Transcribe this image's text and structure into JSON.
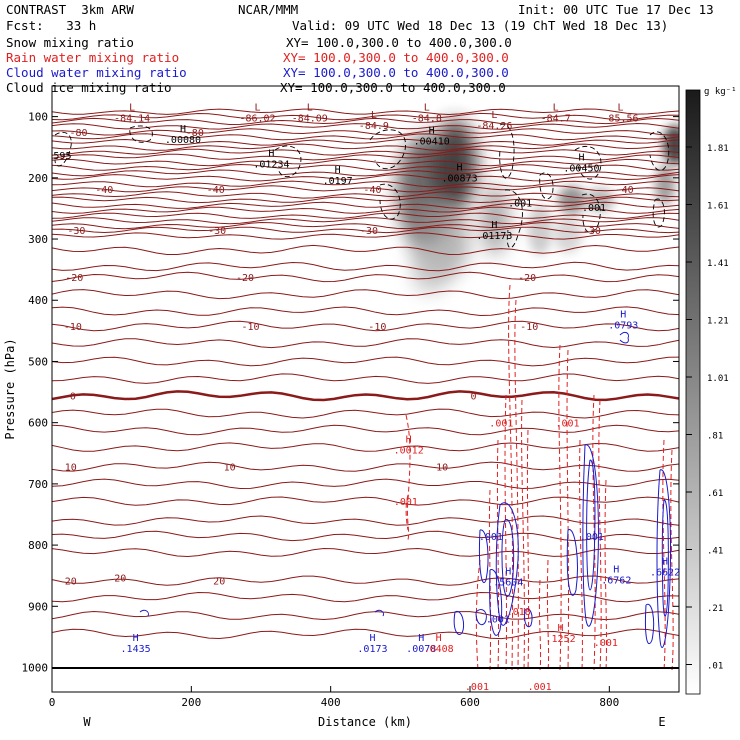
{
  "header": {
    "model": "CONTRAST  3km ARW",
    "org": "NCAR/MMM",
    "init": "Init: 00 UTC Tue 17 Dec 13",
    "fcst": "Fcst:   33 h",
    "valid": "Valid: 09 UTC Wed 18 Dec 13 (19 ChT Wed 18 Dec 13)"
  },
  "colors": {
    "snow": "#000000",
    "rain": "#e02020",
    "cloud_water": "#1a1acc",
    "cloud_ice": "#000000",
    "temp": "#8b1a1a"
  },
  "chart_data": {
    "type": "heatmap",
    "xlabel": "Distance (km)",
    "ylabel": "Pressure (hPa)",
    "xlim": [
      0,
      900
    ],
    "ylim": [
      1040,
      50
    ],
    "x_ticks": [
      0,
      200,
      400,
      600,
      800
    ],
    "y_ticks": [
      100,
      200,
      300,
      400,
      500,
      600,
      700,
      800,
      900,
      1000
    ],
    "x_end_labels": {
      "left": "W",
      "right": "E"
    },
    "legend": [
      {
        "name": "Snow mixing ratio",
        "xy": "XY= 100.0,300.0 to 400.0,300.0",
        "color": "#000000"
      },
      {
        "name": "Rain water mixing ratio",
        "xy": "XY= 100.0,300.0 to 400.0,300.0",
        "color": "#e02020"
      },
      {
        "name": "Cloud water mixing ratio",
        "xy": "XY= 100.0,300.0 to 400.0,300.0",
        "color": "#1a1acc"
      },
      {
        "name": "Cloud ice mixing ratio",
        "xy": "XY= 100.0,300.0 to 400.0,300.0",
        "color": "#000000"
      }
    ],
    "colorbar": {
      "unit": "g kg⁻¹",
      "labels": [
        "1.81",
        "1.61",
        "1.41",
        "1.21",
        "1.01",
        ".81",
        ".61",
        ".41",
        ".21",
        ".01"
      ]
    },
    "temperature_labels": [
      {
        "x": 38,
        "p": 125,
        "text": "-80"
      },
      {
        "x": 205,
        "p": 125,
        "text": "-80"
      },
      {
        "x": 75,
        "p": 218,
        "text": "-40"
      },
      {
        "x": 235,
        "p": 218,
        "text": "-40"
      },
      {
        "x": 460,
        "p": 218,
        "text": "-40"
      },
      {
        "x": 822,
        "p": 218,
        "text": "-40"
      },
      {
        "x": 35,
        "p": 285,
        "text": "-30"
      },
      {
        "x": 237,
        "p": 285,
        "text": "-30"
      },
      {
        "x": 455,
        "p": 285,
        "text": "-30"
      },
      {
        "x": 775,
        "p": 285,
        "text": "-30"
      },
      {
        "x": 32,
        "p": 362,
        "text": "-20"
      },
      {
        "x": 277,
        "p": 362,
        "text": "-20"
      },
      {
        "x": 682,
        "p": 362,
        "text": "-20"
      },
      {
        "x": 30,
        "p": 442,
        "text": "-10"
      },
      {
        "x": 285,
        "p": 442,
        "text": "-10"
      },
      {
        "x": 467,
        "p": 442,
        "text": "-10"
      },
      {
        "x": 685,
        "p": 442,
        "text": "-10"
      },
      {
        "x": 30,
        "p": 556,
        "text": "0"
      },
      {
        "x": 605,
        "p": 556,
        "text": "0"
      },
      {
        "x": 27,
        "p": 672,
        "text": "10"
      },
      {
        "x": 255,
        "p": 672,
        "text": "10"
      },
      {
        "x": 560,
        "p": 672,
        "text": "10"
      },
      {
        "x": 27,
        "p": 858,
        "text": "20"
      },
      {
        "x": 98,
        "p": 853,
        "text": "20"
      },
      {
        "x": 240,
        "p": 858,
        "text": "20"
      }
    ],
    "extrema_labels": [
      {
        "x": 115,
        "p": 90,
        "text": "L",
        "val": "-84.14",
        "color": "#8b1a1a"
      },
      {
        "x": 295,
        "p": 90,
        "text": "L",
        "val": "-86.02",
        "color": "#8b1a1a"
      },
      {
        "x": 370,
        "p": 90,
        "text": "L",
        "val": "-84.09",
        "color": "#8b1a1a"
      },
      {
        "x": 462,
        "p": 102,
        "text": "L",
        "val": "-84.9",
        "color": "#8b1a1a"
      },
      {
        "x": 538,
        "p": 90,
        "text": "L",
        "val": "-84.8",
        "color": "#8b1a1a"
      },
      {
        "x": 635,
        "p": 102,
        "text": "L",
        "val": "-84.26",
        "color": "#8b1a1a"
      },
      {
        "x": 723,
        "p": 90,
        "text": "L",
        "val": "-84.7",
        "color": "#8b1a1a"
      },
      {
        "x": 816,
        "p": 90,
        "text": "L",
        "val": "-85.56",
        "color": "#8b1a1a"
      },
      {
        "x": 188,
        "p": 125,
        "text": "H",
        "val": ".00080",
        "color": "#000000"
      },
      {
        "x": 315,
        "p": 165,
        "text": "H",
        "val": ".01234",
        "color": "#000000"
      },
      {
        "x": 545,
        "p": 128,
        "text": "H",
        "val": ".00410",
        "color": "#000000"
      },
      {
        "x": 585,
        "p": 188,
        "text": "H",
        "val": ".00873",
        "color": "#000000"
      },
      {
        "x": 410,
        "p": 192,
        "text": "H",
        "val": ".0197",
        "color": "#000000"
      },
      {
        "x": 760,
        "p": 172,
        "text": "H",
        "val": ".00450",
        "color": "#000000"
      },
      {
        "x": 635,
        "p": 282,
        "text": "H",
        "val": ".01173",
        "color": "#000000"
      },
      {
        "x": 512,
        "p": 632,
        "text": "H",
        "val": ".0012",
        "color": "#e02020"
      },
      {
        "x": 810,
        "p": 845,
        "text": "H",
        "val": ".6762",
        "color": "#1a1acc"
      },
      {
        "x": 655,
        "p": 848,
        "text": "H",
        "val": ".5604",
        "color": "#1a1acc"
      },
      {
        "x": 880,
        "p": 832,
        "text": "H",
        "val": ".6622",
        "color": "#1a1acc"
      },
      {
        "x": 120,
        "p": 957,
        "text": "H",
        "val": ".1435",
        "color": "#1a1acc"
      },
      {
        "x": 460,
        "p": 957,
        "text": "H",
        "val": ".0173",
        "color": "#1a1acc"
      },
      {
        "x": 530,
        "p": 957,
        "text": "H",
        "val": ".0078",
        "color": "#1a1acc"
      },
      {
        "x": 555,
        "p": 957,
        "text": "H",
        "val": ".0408",
        "color": "#e02020"
      },
      {
        "x": 730,
        "p": 940,
        "text": "H",
        "val": ".1252",
        "color": "#e02020"
      },
      {
        "x": 820,
        "p": 428,
        "text": "H",
        "val": ".0793",
        "color": "#1a1acc"
      }
    ],
    "small_labels": [
      {
        "x": 15,
        "p": 163,
        "text": "595",
        "color": "#000000"
      },
      {
        "x": 672,
        "p": 240,
        "text": ".001",
        "color": "#000000"
      },
      {
        "x": 778,
        "p": 248,
        "text": ".001",
        "color": "#000000"
      },
      {
        "x": 645,
        "p": 600,
        "text": ".001",
        "color": "#e02020"
      },
      {
        "x": 740,
        "p": 600,
        "text": ".001",
        "color": "#e02020"
      },
      {
        "x": 508,
        "p": 728,
        "text": ".001",
        "color": "#e02020"
      },
      {
        "x": 630,
        "p": 785,
        "text": ".001",
        "color": "#1a1acc"
      },
      {
        "x": 775,
        "p": 785,
        "text": ".001",
        "color": "#1a1acc"
      },
      {
        "x": 640,
        "p": 920,
        "text": ".001",
        "color": "#1a1acc"
      },
      {
        "x": 670,
        "p": 908,
        "text": ".018",
        "color": "#e02020"
      },
      {
        "x": 795,
        "p": 958,
        "text": ".001",
        "color": "#e02020"
      },
      {
        "x": 610,
        "p": 1030,
        "text": ".001",
        "color": "#e02020"
      },
      {
        "x": 700,
        "p": 1030,
        "text": ".001",
        "color": "#e02020"
      }
    ]
  }
}
